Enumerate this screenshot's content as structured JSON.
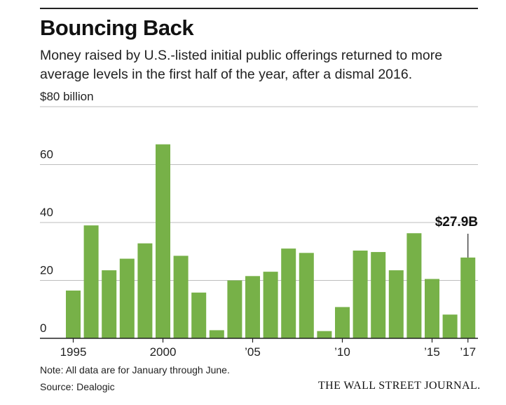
{
  "header": {
    "title": "Bouncing Back",
    "subtitle": "Money raised by U.S.-listed initial public offerings returned to more average levels in the first half of the year, after a dismal 2016."
  },
  "footer": {
    "note": "Note: All data are for January through June.",
    "source": "Source: Dealogic",
    "publisher": "THE WALL STREET JOURNAL."
  },
  "colors": {
    "bar": "#77b148",
    "grid": "#bdbdbd",
    "axis": "#222222"
  },
  "chart_data": {
    "type": "bar",
    "title": "Bouncing Back",
    "categories": [
      "1995",
      "1996",
      "1997",
      "1998",
      "1999",
      "2000",
      "2001",
      "2002",
      "2003",
      "2004",
      "2005",
      "2006",
      "2007",
      "2008",
      "2009",
      "2010",
      "2011",
      "2012",
      "2013",
      "2014",
      "2015",
      "2016",
      "2017"
    ],
    "values": [
      16.5,
      39,
      23.5,
      27.5,
      32.8,
      67,
      28.5,
      15.8,
      2.8,
      20,
      21.5,
      23,
      31,
      29.5,
      2.5,
      10.8,
      30.3,
      29.8,
      23.5,
      36.3,
      20.5,
      8.2,
      27.9
    ],
    "ylim": [
      0,
      80
    ],
    "yticks": [
      {
        "value": 0,
        "label": "0"
      },
      {
        "value": 20,
        "label": "20"
      },
      {
        "value": 40,
        "label": "40"
      },
      {
        "value": 60,
        "label": "60"
      },
      {
        "value": 80,
        "label": "$80 billion"
      }
    ],
    "xticks": [
      {
        "category": "1995",
        "label": "1995"
      },
      {
        "category": "2000",
        "label": "2000"
      },
      {
        "category": "2005",
        "label": "’05"
      },
      {
        "category": "2010",
        "label": "’10"
      },
      {
        "category": "2015",
        "label": "’15"
      },
      {
        "category": "2017",
        "label": "’17"
      }
    ],
    "annotation": {
      "category": "2017",
      "label": "$27.9B"
    },
    "grid": true,
    "xlabel": "",
    "ylabel": ""
  }
}
